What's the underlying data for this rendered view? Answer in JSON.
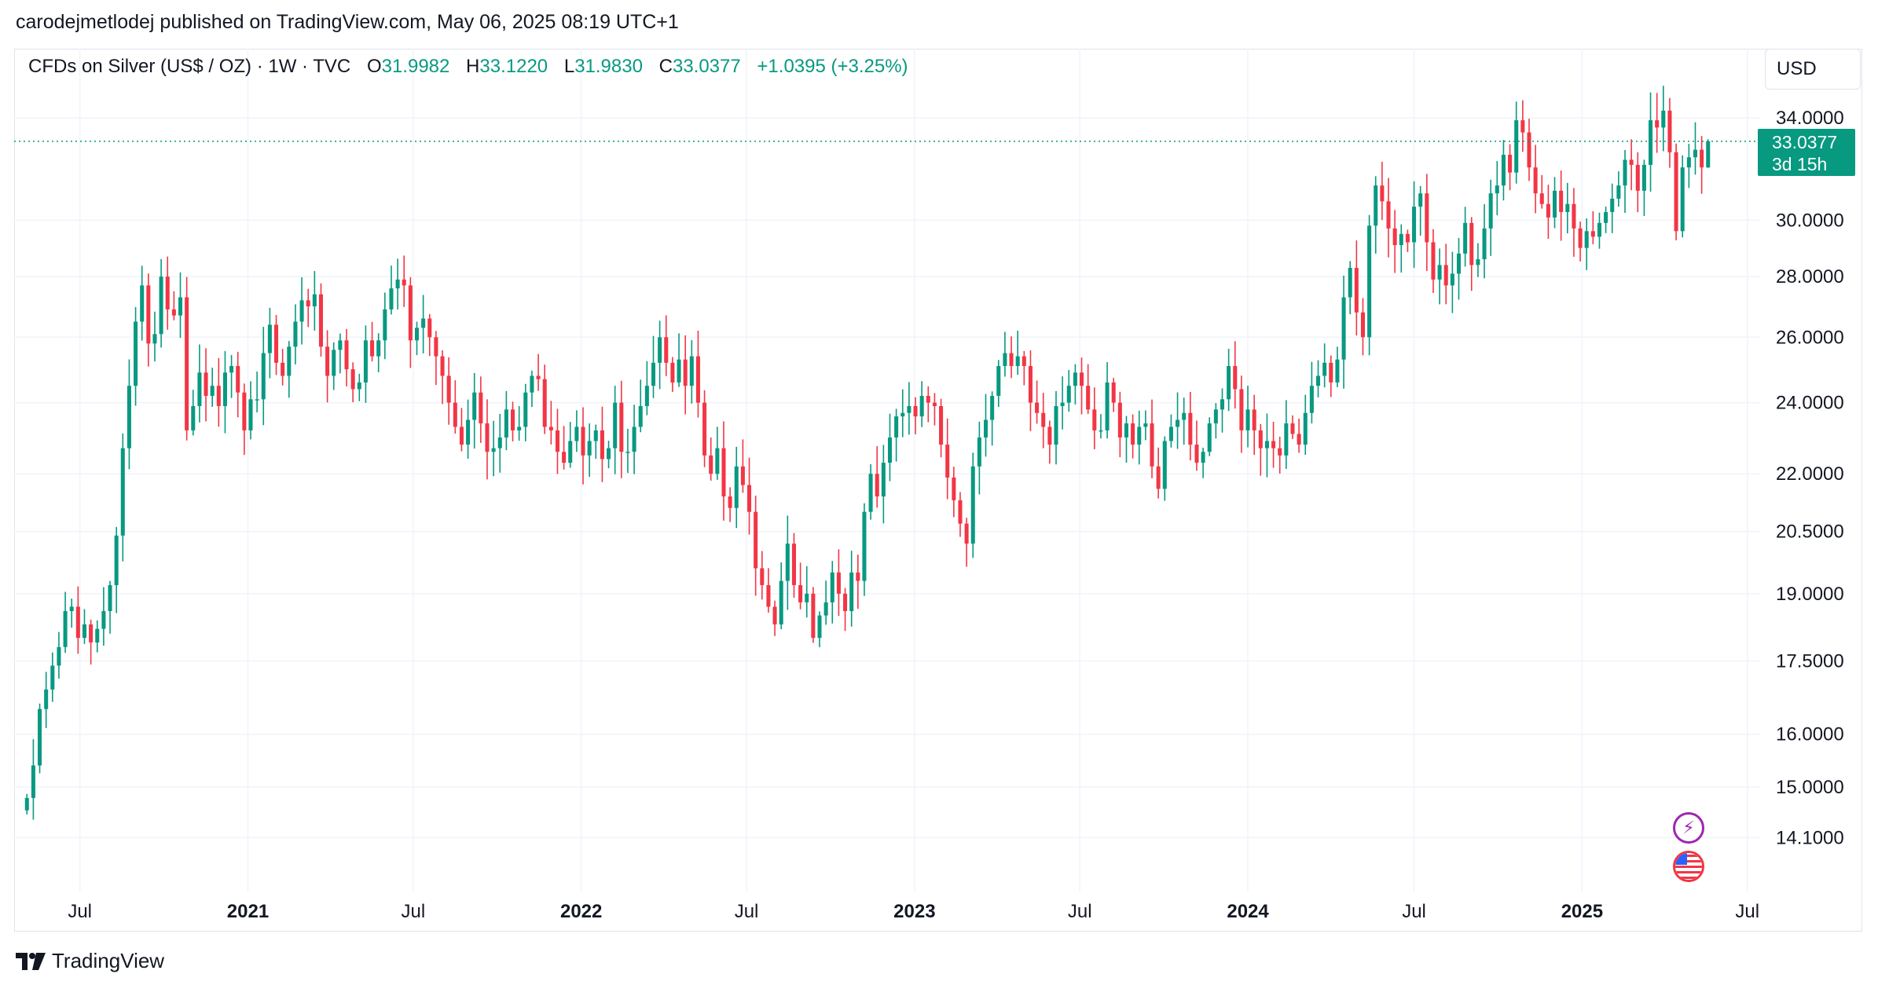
{
  "credit": "carodejmetlodej published on TradingView.com, May 06, 2025 08:19 UTC+1",
  "legend": {
    "symbol": "CFDs on Silver (US$ / OZ) · 1W · TVC",
    "o_label": "O",
    "o_value": "31.9982",
    "h_label": "H",
    "h_value": "33.1220",
    "l_label": "L",
    "l_value": "31.9830",
    "c_label": "C",
    "c_value": "33.0377",
    "change": "+1.0395 (+3.25%)"
  },
  "currency_button": "USD",
  "price_tag": {
    "price": "33.0377",
    "countdown": "3d 15h"
  },
  "footer_brand": "TradingView",
  "colors": {
    "up": "#089981",
    "down": "#f23645",
    "grid": "#f0f3fa",
    "axis_text": "#131722"
  },
  "icons": [
    "bolt-icon",
    "us-flag-icon",
    "tradingview-logo-icon"
  ],
  "chart_data": {
    "type": "candlestick",
    "timeframe": "1W",
    "y_axis_scale": "log",
    "ylim": [
      13.2,
      37.0
    ],
    "xlim": [
      "2020-04-20",
      "2025-07-15"
    ],
    "y_ticks": [
      "34.0000",
      "30.0000",
      "28.0000",
      "26.0000",
      "24.0000",
      "22.0000",
      "20.5000",
      "19.0000",
      "17.5000",
      "16.0000",
      "15.0000",
      "14.1000"
    ],
    "x_ticks": [
      {
        "label": "Jul",
        "date": "2020-07-01",
        "bold": false
      },
      {
        "label": "2021",
        "date": "2021-01-01",
        "bold": true
      },
      {
        "label": "Jul",
        "date": "2021-07-01",
        "bold": false
      },
      {
        "label": "2022",
        "date": "2022-01-01",
        "bold": true
      },
      {
        "label": "Jul",
        "date": "2022-07-01",
        "bold": false
      },
      {
        "label": "2023",
        "date": "2023-01-01",
        "bold": true
      },
      {
        "label": "Jul",
        "date": "2023-07-01",
        "bold": false
      },
      {
        "label": "2024",
        "date": "2024-01-01",
        "bold": true
      },
      {
        "label": "Jul",
        "date": "2024-07-01",
        "bold": false
      },
      {
        "label": "2025",
        "date": "2025-01-01",
        "bold": true
      },
      {
        "label": "Jul",
        "date": "2025-07-01",
        "bold": false
      }
    ],
    "last_price": 33.0377,
    "grid": true,
    "closes": [
      14.8,
      15.4,
      16.5,
      16.9,
      17.4,
      17.8,
      18.6,
      18.7,
      18.0,
      18.3,
      17.9,
      18.2,
      18.6,
      19.2,
      20.4,
      22.7,
      24.5,
      26.5,
      27.7,
      25.8,
      26.1,
      28.0,
      26.9,
      26.7,
      27.3,
      23.2,
      23.9,
      24.9,
      24.2,
      24.5,
      23.9,
      24.9,
      25.1,
      24.3,
      23.2,
      24.1,
      24.1,
      25.5,
      26.4,
      25.2,
      24.8,
      25.7,
      26.5,
      27.2,
      27.0,
      27.4,
      25.7,
      24.8,
      25.6,
      25.9,
      25.0,
      24.4,
      24.6,
      25.9,
      25.4,
      25.9,
      26.9,
      27.6,
      27.9,
      27.7,
      25.9,
      26.3,
      26.6,
      26.0,
      25.4,
      24.8,
      24.0,
      23.3,
      22.8,
      23.5,
      24.3,
      23.4,
      22.6,
      22.7,
      23.0,
      23.8,
      23.2,
      23.3,
      24.3,
      24.8,
      24.7,
      23.3,
      23.2,
      22.6,
      22.3,
      22.9,
      23.3,
      22.5,
      22.9,
      23.2,
      22.4,
      22.7,
      24.0,
      22.6,
      22.6,
      23.3,
      23.9,
      24.5,
      25.2,
      26.0,
      25.2,
      24.6,
      25.3,
      24.5,
      25.4,
      24.0,
      22.5,
      22.0,
      22.7,
      21.4,
      21.1,
      22.2,
      21.7,
      21.0,
      19.6,
      19.2,
      18.7,
      18.3,
      19.3,
      20.2,
      19.2,
      18.8,
      19.0,
      18.0,
      18.5,
      18.8,
      19.5,
      19.0,
      18.6,
      19.5,
      19.3,
      21.0,
      22.0,
      21.4,
      22.3,
      23.0,
      23.6,
      23.7,
      23.9,
      23.6,
      24.2,
      24.0,
      23.9,
      22.8,
      21.9,
      21.3,
      20.7,
      20.2,
      22.2,
      23.0,
      23.5,
      24.2,
      25.1,
      25.5,
      25.1,
      25.4,
      25.1,
      24.0,
      23.7,
      23.3,
      22.8,
      23.9,
      24.0,
      24.5,
      24.9,
      24.5,
      23.8,
      23.2,
      23.2,
      24.6,
      24.0,
      23.0,
      23.4,
      22.8,
      23.3,
      23.4,
      22.2,
      21.6,
      22.9,
      23.3,
      23.5,
      23.7,
      22.8,
      22.3,
      22.6,
      23.4,
      23.8,
      24.1,
      25.1,
      24.4,
      23.2,
      23.8,
      23.2,
      22.7,
      22.9,
      22.7,
      22.5,
      23.4,
      23.1,
      22.8,
      23.7,
      24.5,
      24.8,
      25.2,
      24.6,
      25.3,
      27.3,
      28.3,
      26.8,
      26.0,
      29.8,
      31.3,
      30.7,
      29.7,
      29.1,
      29.5,
      29.2,
      30.5,
      31.0,
      29.2,
      27.9,
      28.4,
      27.7,
      28.1,
      28.8,
      29.9,
      28.4,
      28.6,
      29.7,
      31.0,
      31.3,
      32.5,
      31.8,
      33.9,
      33.4,
      32.0,
      31.0,
      30.6,
      30.1,
      31.1,
      30.3,
      30.6,
      29.7,
      29.0,
      29.6,
      29.4,
      29.9,
      30.3,
      30.8,
      31.3,
      32.3,
      32.1,
      31.1,
      32.1,
      33.9,
      33.6,
      34.3,
      32.6,
      29.6,
      32.0,
      32.4,
      32.7,
      32.0,
      33.0377
    ]
  }
}
